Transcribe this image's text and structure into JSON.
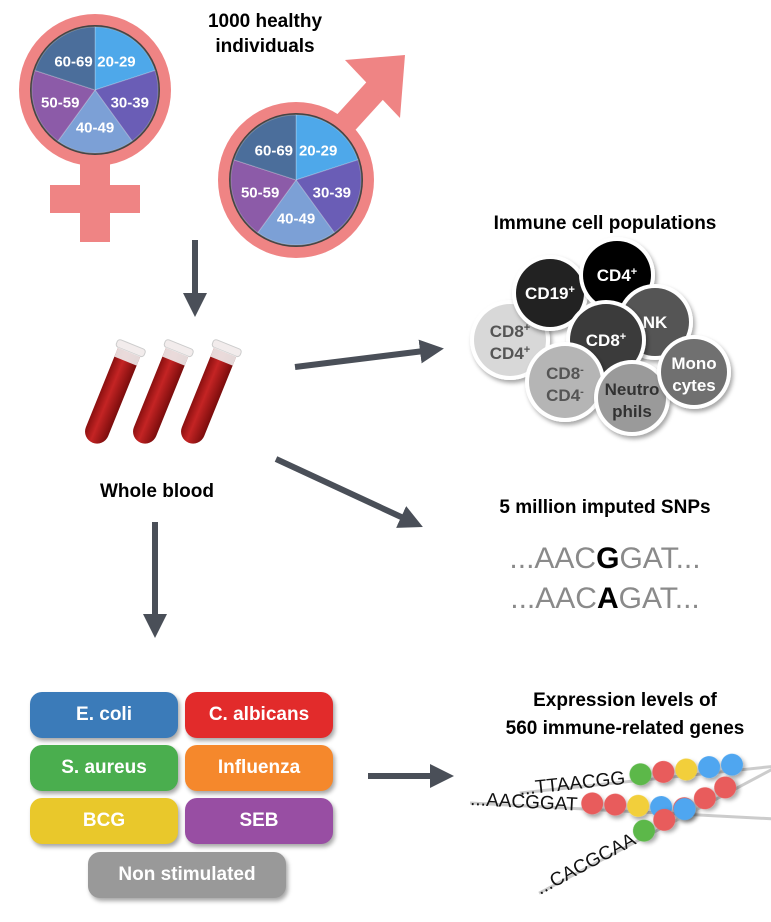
{
  "cohort": {
    "title_line1": "1000 healthy",
    "title_line2": "individuals",
    "age_groups": [
      "20-29",
      "30-39",
      "40-49",
      "50-59",
      "60-69"
    ],
    "age_colors": [
      "#4ea8ea",
      "#6a5db6",
      "#7ca0d6",
      "#8c5ba8",
      "#4b6e9b"
    ],
    "symbol_color": "#ef8484"
  },
  "blood": {
    "label": "Whole blood",
    "tube_color": "#b41c1c"
  },
  "immune": {
    "title": "Immune cell populations",
    "cells": [
      {
        "line1": "CD8",
        "sup1": "+",
        "line2": "CD4",
        "sup2": "+",
        "fill": "#d8d8d8",
        "text": "#555"
      },
      {
        "line1": "CD19",
        "sup1": "+",
        "fill": "#222",
        "text": "#fff"
      },
      {
        "line1": "CD4",
        "sup1": "+",
        "fill": "#000",
        "text": "#fff"
      },
      {
        "line1": "NK",
        "fill": "#555",
        "text": "#fff"
      },
      {
        "line1": "CD8",
        "sup1": "+",
        "fill": "#3a3a3a",
        "text": "#fff"
      },
      {
        "line1": "CD8",
        "sup1": "-",
        "line2": "CD4",
        "sup2": "-",
        "fill": "#b5b5b5",
        "text": "#555"
      },
      {
        "line1": "Neutro",
        "line2": "phils",
        "fill": "#9a9a9a",
        "text": "#333"
      },
      {
        "line1": "Mono",
        "line2": "cytes",
        "fill": "#707070",
        "text": "#fff"
      }
    ]
  },
  "snps": {
    "title": "5 million imputed SNPs",
    "seq1": {
      "prefix": "...AAC",
      "allele": "G",
      "suffix": "GAT..."
    },
    "seq2": {
      "prefix": "...AAC",
      "allele": "A",
      "suffix": "GAT..."
    }
  },
  "stimuli": [
    {
      "label": "E. coli",
      "color": "#3b7bb9"
    },
    {
      "label": "C. albicans",
      "color": "#e22b2b"
    },
    {
      "label": "S. aureus",
      "color": "#4aae4e"
    },
    {
      "label": "Influenza",
      "color": "#f5882c"
    },
    {
      "label": "BCG",
      "color": "#e9c82b"
    },
    {
      "label": "SEB",
      "color": "#984ea3"
    },
    {
      "label": "Non stimulated",
      "color": "#999999"
    }
  ],
  "expression": {
    "title_line1": "Expression levels of",
    "title_line2": "560 immune-related genes",
    "strands": [
      {
        "seq": "...TTAACGG",
        "beads": [
          "#5cb84a",
          "#e85c5c",
          "#f2cf3a",
          "#4fa6f0",
          "#4fa6f0"
        ]
      },
      {
        "seq": "...AACGGAT",
        "beads": [
          "#e85c5c",
          "#e85c5c",
          "#f2cf3a",
          "#4fa6f0",
          "#e85c5c"
        ]
      },
      {
        "seq": "...CACGCAA",
        "beads": [
          "#5cb84a",
          "#e85c5c",
          "#4fa6f0",
          "#e85c5c",
          "#e85c5c"
        ]
      }
    ]
  }
}
